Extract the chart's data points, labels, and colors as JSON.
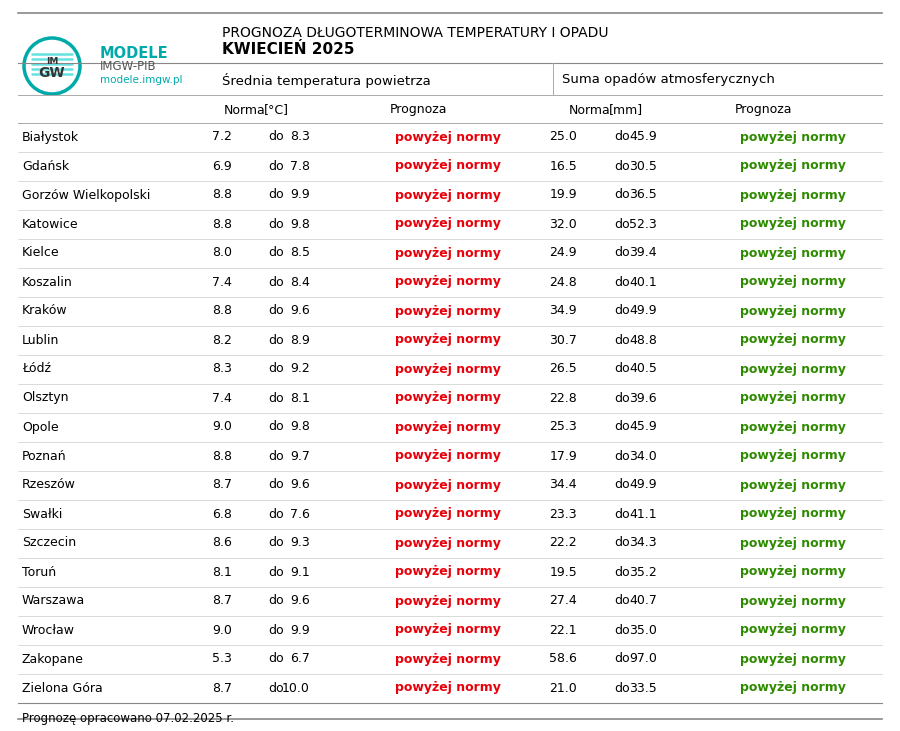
{
  "title_line1": "PROGNOZA DŁUGOTERMINOWA TEMPERATURY I OPADU",
  "title_line2": "KWIECIEŃ 2025",
  "subtitle_temp": "ŚredniaTemperatura powietrza",
  "subtitle_precip": "Suma opadów atmosferycznych",
  "footer": "Prognozę opracowano 07.02.2025 r.",
  "cities": [
    "Białystok",
    "Gdańsk",
    "Gorzów Wielkopolski",
    "Katowice",
    "Kielce",
    "Koszalin",
    "Kraków",
    "Lublin",
    "Łódź",
    "Olsztyn",
    "Opole",
    "Poznań",
    "Rzeszów",
    "Swałki",
    "Szczecin",
    "Toruń",
    "Warszawa",
    "Wrocław",
    "Zakopane",
    "Zielona Góra"
  ],
  "temp_norma_low": [
    7.2,
    6.9,
    8.8,
    8.8,
    8.0,
    7.4,
    8.8,
    8.2,
    8.3,
    7.4,
    9.0,
    8.8,
    8.7,
    6.8,
    8.6,
    8.1,
    8.7,
    9.0,
    5.3,
    8.7
  ],
  "temp_norma_high": [
    8.3,
    7.8,
    9.9,
    9.8,
    8.5,
    8.4,
    9.6,
    8.9,
    9.2,
    8.1,
    9.8,
    9.7,
    9.6,
    7.6,
    9.3,
    9.1,
    9.6,
    9.9,
    6.7,
    10.0
  ],
  "precip_norma_low": [
    25.0,
    16.5,
    19.9,
    32.0,
    24.9,
    24.8,
    34.9,
    30.7,
    26.5,
    22.8,
    25.3,
    17.9,
    34.4,
    23.3,
    22.2,
    19.5,
    27.4,
    22.1,
    58.6,
    21.0
  ],
  "precip_norma_high": [
    45.9,
    30.5,
    36.5,
    52.3,
    39.4,
    40.1,
    49.9,
    48.8,
    40.5,
    39.6,
    45.9,
    34.0,
    49.9,
    41.1,
    34.3,
    35.2,
    40.7,
    35.0,
    97.0,
    33.5
  ],
  "red_color": "#e8000a",
  "green_color": "#2e8b00",
  "line_color": "#cccccc",
  "border_color": "#888888",
  "text_color": "#000000",
  "logo_teal": "#00aaaa",
  "logo_dark": "#555555",
  "modele_color": "#00aaaa",
  "site_color": "#00aaaa"
}
